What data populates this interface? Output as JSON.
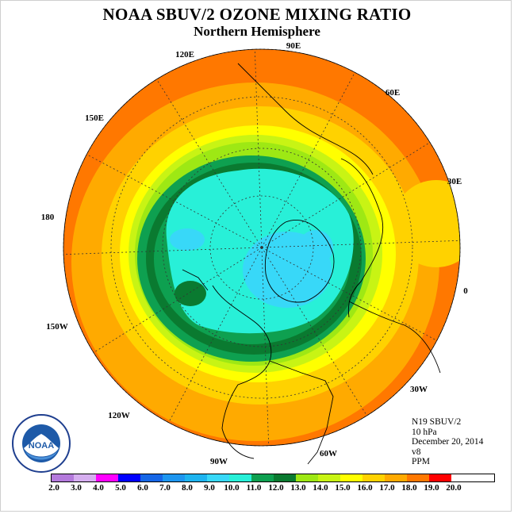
{
  "title": "NOAA SBUV/2 OZONE MIXING RATIO",
  "subtitle": "Northern Hemisphere",
  "info": [
    "N19 SBUV/2",
    "10 hPa",
    "December 20, 2014",
    "v8",
    "PPM"
  ],
  "longitude_labels": [
    "90E",
    "60E",
    "30E",
    "0",
    "30W",
    "60W",
    "90W",
    "120W",
    "150W",
    "180",
    "150E",
    "120E"
  ],
  "logo_text": "NOAA",
  "legend": {
    "labels": [
      "2.0",
      "3.0",
      "4.0",
      "5.0",
      "6.0",
      "7.0",
      "8.0",
      "9.0",
      "10.0",
      "11.0",
      "12.0",
      "13.0",
      "14.0",
      "15.0",
      "16.0",
      "17.0",
      "18.0",
      "19.0",
      "20.0"
    ],
    "colors": [
      "#b47adc",
      "#d6aef0",
      "#ff00ff",
      "#0000ff",
      "#1666e6",
      "#1e96f0",
      "#1eb4f0",
      "#38d8f8",
      "#28f0d8",
      "#0ea050",
      "#0a7a30",
      "#9ee814",
      "#c8f414",
      "#ffff00",
      "#ffd200",
      "#ffaa00",
      "#ff7800",
      "#ff0000",
      "#8b5a2b"
    ]
  },
  "map_colors": {
    "orange_red": "#ff7800",
    "orange": "#ffaa00",
    "light_orange": "#ffd200",
    "yellow": "#ffff00",
    "yellow_green": "#c8f414",
    "light_green": "#9ee814",
    "green": "#0ea050",
    "dark_green": "#0a7a30",
    "aqua": "#28f0d8",
    "light_blue": "#38d8f8"
  }
}
